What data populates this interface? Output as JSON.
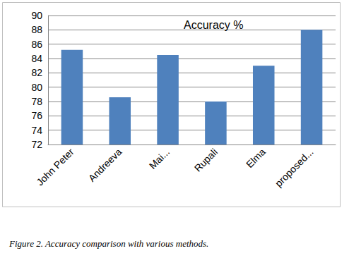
{
  "chart_data": {
    "type": "bar",
    "title": "Accuracy %",
    "caption": "Figure 2. Accuracy comparison with various methods.",
    "categories": [
      "John Peter",
      "Andreeva",
      "Mai...",
      "Rupali",
      "Elma",
      "proposed..."
    ],
    "values": [
      85.2,
      78.6,
      84.5,
      78.0,
      83.0,
      88.0
    ],
    "color": "#4f81bd",
    "ylim": [
      72,
      90
    ],
    "yticks": [
      72,
      74,
      76,
      78,
      80,
      82,
      84,
      86,
      88,
      90
    ],
    "grid": true
  }
}
